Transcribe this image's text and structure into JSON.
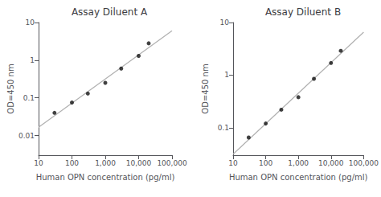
{
  "chart_data": [
    {
      "type": "scatter",
      "title": "Assay Diluent A",
      "xlabel": "Human OPN concentration (pg/ml)",
      "ylabel": "OD=450 nm",
      "log": true,
      "xlim": [
        10,
        100000
      ],
      "xticks": [
        10,
        100,
        {
          "value": 1000,
          "label": "1,000"
        },
        {
          "value": 10000,
          "label": "10,000"
        },
        {
          "value": 100000,
          "label": "100,000"
        }
      ],
      "ylim": [
        0.003,
        10
      ],
      "yticks": [
        0.01,
        0.1,
        1,
        10
      ],
      "series": [
        {
          "type": "line",
          "color": "#b0b0b0",
          "x": [
            10,
            100000
          ],
          "values": [
            0.016537,
            6.0461
          ]
        },
        {
          "type": "scatter",
          "color": "#111111",
          "x": [
            30,
            100,
            300,
            1000,
            3000,
            10000,
            20000
          ],
          "values": [
            0.04,
            0.075,
            0.13,
            0.25,
            0.6,
            1.3,
            2.8
          ]
        }
      ]
    },
    {
      "type": "scatter",
      "title": "Assay Diluent B",
      "xlabel": "Human OPN concentration (pg/ml)",
      "ylabel": "OD=450 nm",
      "log": true,
      "xlim": [
        10,
        100000
      ],
      "xticks": [
        10,
        100,
        {
          "value": 1000,
          "label": "1,000"
        },
        {
          "value": 10000,
          "label": "10,000"
        },
        {
          "value": 100000,
          "label": "100,000"
        }
      ],
      "ylim": [
        0.03,
        10
      ],
      "yticks": [
        0.1,
        1,
        10
      ],
      "series": [
        {
          "type": "line",
          "color": "#b0b0b0",
          "x": [
            10,
            100000
          ],
          "values": [
            0.031303,
            6.5519
          ]
        },
        {
          "type": "scatter",
          "color": "#111111",
          "x": [
            30,
            100,
            300,
            1000,
            3000,
            10000,
            20000
          ],
          "values": [
            0.065,
            0.12,
            0.22,
            0.38,
            0.85,
            1.7,
            2.9
          ]
        }
      ]
    }
  ]
}
